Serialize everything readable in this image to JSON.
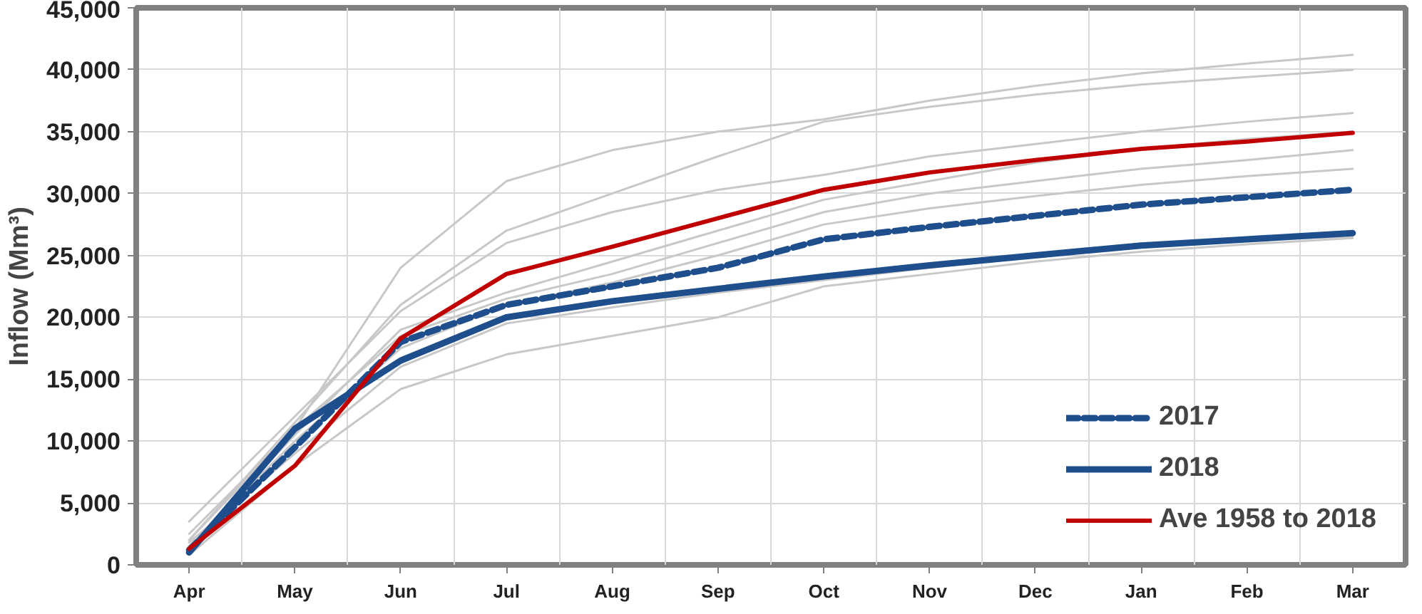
{
  "chart_data": {
    "type": "line",
    "ylabel": "Inflow (Mm³)",
    "categories": [
      "Apr",
      "May",
      "Jun",
      "Jul",
      "Aug",
      "Sep",
      "Oct",
      "Nov",
      "Dec",
      "Jan",
      "Feb",
      "Mar"
    ],
    "ylim": [
      0,
      45000
    ],
    "yticks": [
      {
        "value": 0,
        "label": "0"
      },
      {
        "value": 5000,
        "label": "5,000"
      },
      {
        "value": 10000,
        "label": "10,000"
      },
      {
        "value": 15000,
        "label": "15,000"
      },
      {
        "value": 20000,
        "label": "20,000"
      },
      {
        "value": 25000,
        "label": "25,000"
      },
      {
        "value": 30000,
        "label": "30,000"
      },
      {
        "value": 35000,
        "label": "35,000"
      },
      {
        "value": 40000,
        "label": "40,000"
      },
      {
        "value": 45000,
        "label": "45,000"
      }
    ],
    "grid": true,
    "legend": "bottom right",
    "series": [
      {
        "color": "#c8c8c8",
        "values": [
          2500,
          11000,
          24000,
          31000,
          33500,
          35000,
          36000,
          37500,
          38700,
          39700,
          40500,
          41200
        ]
      },
      {
        "color": "#c8c8c8",
        "values": [
          2000,
          11500,
          21000,
          27000,
          30000,
          33000,
          35800,
          37000,
          38000,
          38800,
          39400,
          40000
        ]
      },
      {
        "color": "#c8c8c8",
        "values": [
          3500,
          12000,
          20500,
          26000,
          28500,
          30300,
          31500,
          33000,
          34000,
          35000,
          35800,
          36500
        ]
      },
      {
        "color": "#c8c8c8",
        "values": [
          1500,
          10500,
          19000,
          22000,
          24500,
          27000,
          29500,
          31000,
          32500,
          33600,
          34400,
          35000
        ]
      },
      {
        "color": "#c8c8c8",
        "values": [
          2000,
          11000,
          18500,
          21500,
          23500,
          26000,
          28500,
          30000,
          31000,
          32000,
          32700,
          33500
        ]
      },
      {
        "color": "#c8c8c8",
        "values": [
          1500,
          10000,
          17500,
          21000,
          22800,
          25000,
          27500,
          28800,
          29800,
          30700,
          31400,
          32000
        ]
      },
      {
        "color": "#c8c8c8",
        "values": [
          1800,
          9000,
          16000,
          19500,
          20800,
          22000,
          23000,
          24000,
          25000,
          25800,
          26300,
          26500
        ]
      },
      {
        "color": "#c8c8c8",
        "values": [
          800,
          8000,
          14200,
          17000,
          18500,
          20000,
          22500,
          23500,
          24500,
          25300,
          25900,
          26400
        ]
      },
      {
        "name": "2017",
        "color": "#1f4e8c",
        "line_style": "dashed",
        "values": [
          1200,
          9500,
          18000,
          21000,
          22500,
          24000,
          26300,
          27300,
          28200,
          29100,
          29700,
          30300
        ]
      },
      {
        "name": "2018",
        "color": "#1f4e8c",
        "line_style": "solid",
        "values": [
          1000,
          11000,
          16500,
          20000,
          21300,
          22300,
          23300,
          24200,
          25000,
          25800,
          26300,
          26800
        ]
      },
      {
        "name": "Ave 1958 to 2018",
        "color": "#c00000",
        "line_style": "solid",
        "values": [
          1300,
          8000,
          18300,
          23500,
          25700,
          28000,
          30300,
          31700,
          32700,
          33600,
          34200,
          34900
        ]
      }
    ]
  }
}
